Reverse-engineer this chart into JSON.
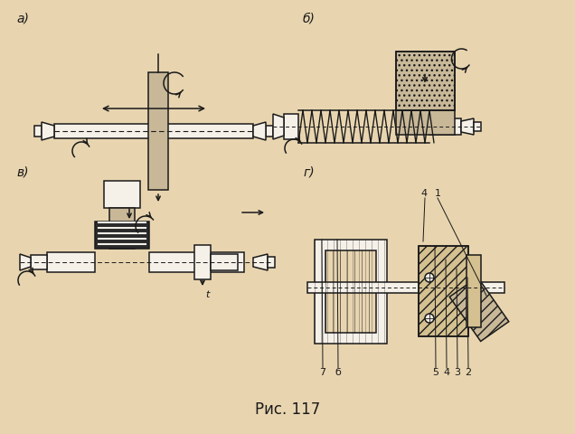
{
  "background_color": "#e8d5b0",
  "line_color": "#1a1a1a",
  "wheel_fill": "#c8b898",
  "white_fill": "#f5f0e8",
  "dark_fill": "#2a2a2a",
  "title": "Рис. 117",
  "title_fontsize": 12,
  "label_a": "а)",
  "label_b": "б)",
  "label_v": "в)",
  "label_g": "г)",
  "label_fontsize": 10,
  "num_fontsize": 8
}
